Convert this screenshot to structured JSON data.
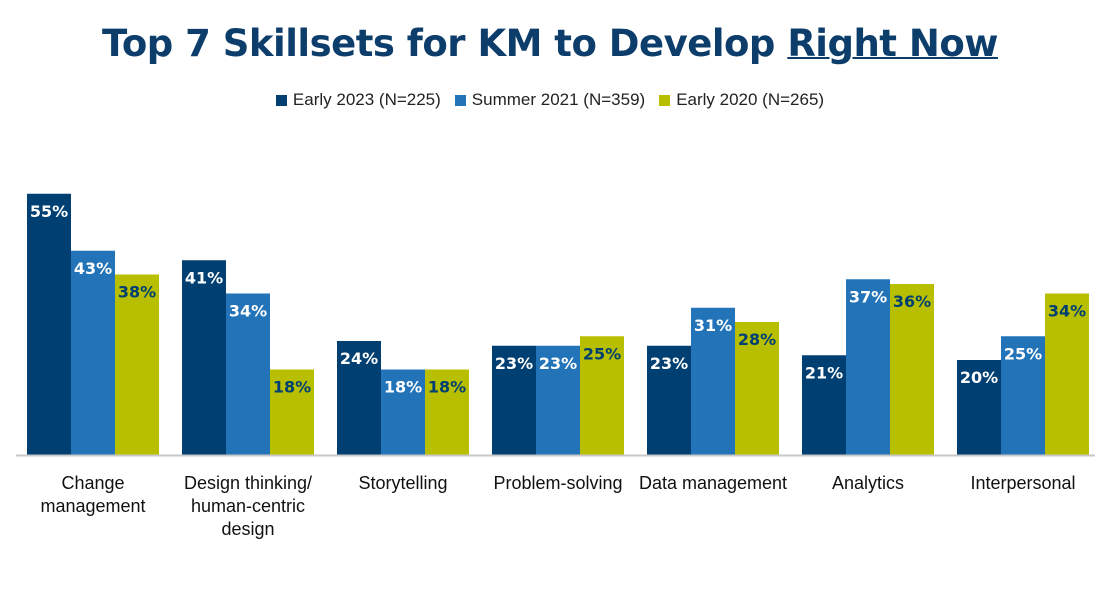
{
  "chart_data": {
    "type": "bar",
    "title": "Top 7 Skillsets for KM to Develop",
    "title_emphasis": "Right Now",
    "categories": [
      "Change management",
      "Design thinking/ human-centric design",
      "Storytelling",
      "Problem-solving",
      "Data management",
      "Analytics",
      "Interpersonal"
    ],
    "series": [
      {
        "name": "Early 2023 (N=225)",
        "color": "#003f72",
        "label_color": "#ffffff",
        "values": [
          55,
          41,
          24,
          23,
          23,
          21,
          20
        ]
      },
      {
        "name": "Summer 2021 (N=359)",
        "color": "#2273b7",
        "label_color": "#ffffff",
        "values": [
          43,
          34,
          18,
          23,
          31,
          37,
          25
        ]
      },
      {
        "name": "Early 2020 (N=265)",
        "color": "#b8bf00",
        "label_color": "#003f72",
        "values": [
          38,
          18,
          18,
          25,
          28,
          36,
          34
        ]
      }
    ],
    "value_suffix": "%",
    "xlabel": "",
    "ylabel": "",
    "ylim": [
      0,
      60
    ],
    "grid": false,
    "legend_position": "top-center"
  }
}
